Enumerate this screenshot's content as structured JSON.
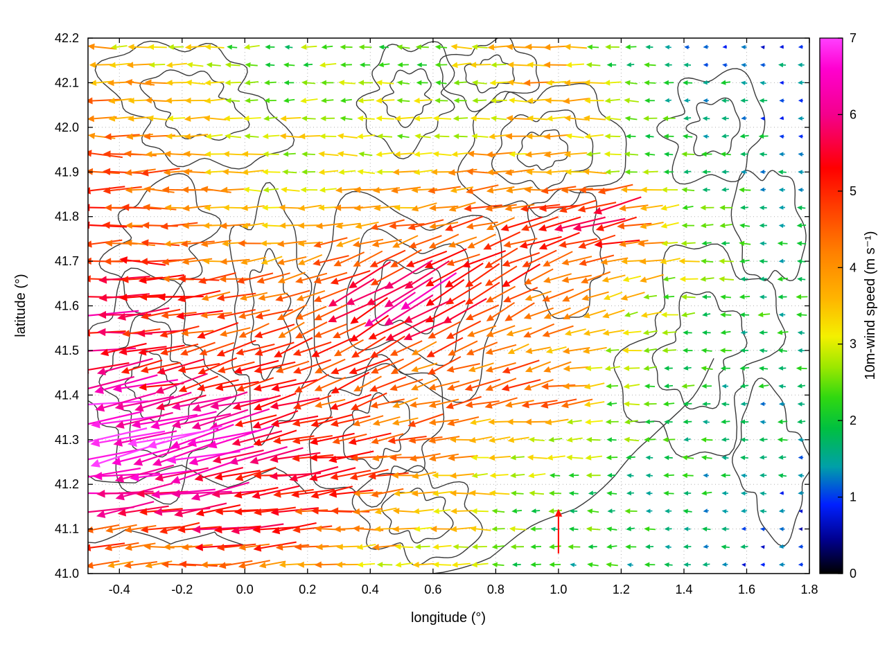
{
  "figure": {
    "background": "#ffffff"
  },
  "chart_data": {
    "type": "quiver",
    "title": "",
    "xlabel": "longitude (°)",
    "ylabel": "latitude (°)",
    "xlim": [
      -0.5,
      1.8
    ],
    "ylim": [
      41.0,
      42.2
    ],
    "grid": true,
    "x_ticks": {
      "values": [
        -0.4,
        -0.2,
        0.0,
        0.2,
        0.4,
        0.6,
        0.8,
        1.0,
        1.2,
        1.4,
        1.6,
        1.8
      ],
      "labels": [
        "-0.4",
        "-0.2",
        "0.0",
        "0.2",
        "0.4",
        "0.6",
        "0.8",
        "1.0",
        "1.2",
        "1.4",
        "1.6",
        "1.8"
      ]
    },
    "y_ticks": {
      "values": [
        41.0,
        41.1,
        41.2,
        41.3,
        41.4,
        41.5,
        41.6,
        41.7,
        41.8,
        41.9,
        42.0,
        42.1,
        42.2
      ],
      "labels": [
        "41.0",
        "41.1",
        "41.2",
        "41.3",
        "41.4",
        "41.5",
        "41.6",
        "41.7",
        "41.8",
        "41.9",
        "42.0",
        "42.1",
        "42.2"
      ]
    },
    "colorbar": {
      "label": "10m-wind speed (m s⁻¹)",
      "min": 0,
      "max": 7,
      "ticks": {
        "values": [
          0,
          1,
          2,
          3,
          4,
          5,
          6,
          7
        ],
        "labels": [
          "0",
          "1",
          "2",
          "3",
          "4",
          "5",
          "6",
          "7"
        ]
      },
      "stops": [
        [
          0.0,
          "#000000"
        ],
        [
          0.45,
          "#00008f"
        ],
        [
          0.9,
          "#0020ff"
        ],
        [
          1.4,
          "#00a0a8"
        ],
        [
          1.9,
          "#00c040"
        ],
        [
          2.3,
          "#30d810"
        ],
        [
          2.7,
          "#9ce800"
        ],
        [
          3.1,
          "#f4f000"
        ],
        [
          3.6,
          "#ffb400"
        ],
        [
          4.2,
          "#ff8000"
        ],
        [
          4.8,
          "#ff3c00"
        ],
        [
          5.3,
          "#ff0000"
        ],
        [
          6.0,
          "#f4008c"
        ],
        [
          6.6,
          "#ff00d0"
        ],
        [
          7.0,
          "#ff40ff"
        ]
      ]
    },
    "arrow_grid": {
      "lats": [
        42.2,
        42.1,
        42.0,
        41.9,
        41.8,
        41.7,
        41.6,
        41.5,
        41.4,
        41.3,
        41.2,
        41.1,
        41.0
      ],
      "lons": [
        -0.5,
        -0.29,
        -0.08,
        0.13,
        0.34,
        0.55,
        0.75,
        0.96,
        1.17,
        1.38,
        1.59,
        1.8
      ],
      "speed": [
        [
          3.5,
          3.2,
          2.6,
          2.2,
          2.6,
          2.4,
          3.4,
          3.8,
          2.2,
          1.5,
          1.2,
          0.9
        ],
        [
          4.0,
          3.6,
          3.0,
          2.5,
          2.8,
          2.6,
          3.0,
          4.0,
          2.6,
          1.8,
          1.5,
          1.0
        ],
        [
          4.2,
          3.8,
          3.2,
          3.0,
          3.0,
          2.8,
          3.2,
          3.6,
          2.8,
          2.0,
          1.6,
          1.2
        ],
        [
          5.0,
          4.4,
          3.5,
          3.0,
          3.2,
          3.6,
          4.0,
          3.6,
          3.0,
          2.2,
          1.8,
          1.5
        ],
        [
          5.0,
          4.2,
          3.8,
          3.6,
          3.8,
          4.0,
          4.4,
          5.4,
          6.0,
          2.6,
          2.0,
          1.8
        ],
        [
          5.2,
          4.8,
          4.2,
          4.0,
          4.5,
          4.8,
          5.0,
          4.6,
          4.0,
          3.0,
          2.0,
          1.8
        ],
        [
          6.0,
          5.4,
          4.5,
          4.2,
          5.6,
          6.4,
          5.0,
          4.2,
          3.4,
          2.5,
          2.0,
          1.8
        ],
        [
          5.6,
          5.0,
          4.8,
          4.6,
          5.0,
          4.6,
          4.2,
          4.0,
          3.0,
          2.2,
          2.0,
          1.8
        ],
        [
          6.5,
          6.0,
          5.5,
          5.0,
          4.6,
          4.2,
          4.6,
          5.0,
          2.5,
          2.0,
          1.8,
          1.5
        ],
        [
          7.0,
          6.8,
          6.2,
          5.5,
          4.8,
          4.2,
          3.5,
          3.0,
          2.5,
          2.0,
          1.8,
          1.5
        ],
        [
          6.8,
          6.5,
          5.8,
          5.2,
          4.8,
          4.0,
          3.2,
          2.5,
          2.0,
          1.8,
          1.5,
          1.2
        ],
        [
          5.0,
          4.6,
          5.4,
          5.0,
          4.0,
          3.5,
          3.0,
          2.0,
          2.2,
          1.8,
          1.2,
          1.0
        ],
        [
          4.0,
          3.6,
          4.4,
          4.0,
          3.5,
          3.0,
          2.5,
          2.0,
          1.8,
          1.5,
          1.2,
          0.9
        ]
      ],
      "direction": [
        [
          180,
          180,
          180,
          180,
          180,
          180,
          180,
          180,
          180,
          180,
          180,
          180
        ],
        [
          180,
          180,
          180,
          180,
          180,
          180,
          180,
          180,
          180,
          180,
          180,
          180
        ],
        [
          180,
          180,
          180,
          180,
          180,
          180,
          180,
          180,
          180,
          180,
          180,
          180
        ],
        [
          180,
          180,
          180,
          180,
          180,
          180,
          180,
          180,
          180,
          180,
          180,
          180
        ],
        [
          180,
          180,
          180,
          180,
          185,
          190,
          195,
          195,
          195,
          185,
          180,
          180
        ],
        [
          180,
          180,
          185,
          195,
          200,
          205,
          205,
          200,
          190,
          185,
          180,
          180
        ],
        [
          182,
          185,
          190,
          200,
          210,
          212,
          210,
          205,
          195,
          185,
          180,
          180
        ],
        [
          185,
          188,
          195,
          205,
          208,
          205,
          200,
          195,
          188,
          182,
          180,
          180
        ],
        [
          190,
          192,
          195,
          198,
          200,
          198,
          195,
          190,
          185,
          180,
          180,
          180
        ],
        [
          192,
          193,
          193,
          192,
          190,
          188,
          185,
          182,
          180,
          180,
          180,
          180
        ],
        [
          188,
          190,
          190,
          188,
          186,
          184,
          182,
          180,
          180,
          180,
          180,
          180
        ],
        [
          184,
          185,
          186,
          185,
          184,
          182,
          180,
          180,
          180,
          180,
          180,
          180
        ],
        [
          182,
          183,
          184,
          183,
          182,
          180,
          180,
          180,
          178,
          178,
          180,
          180
        ]
      ],
      "nx": 38,
      "ny": 30
    },
    "special_arrows": [
      {
        "lon": 1.0,
        "lat": 41.11,
        "speed": 5.2,
        "direction": 90
      }
    ],
    "contours": {
      "color": "#3a3a3a",
      "width": 1.4,
      "blobs": [
        {
          "lon": -0.16,
          "lat": 42.05,
          "rlon": 0.26,
          "rlat": 0.13,
          "rings": [
            1,
            0.55
          ],
          "seed": 1
        },
        {
          "lon": -0.27,
          "lat": 41.74,
          "rlon": 0.17,
          "rlat": 0.12,
          "rings": [
            1
          ],
          "seed": 2
        },
        {
          "lon": -0.3,
          "lat": 41.42,
          "rlon": 0.24,
          "rlat": 0.2,
          "rings": [
            1,
            0.6,
            0.3
          ],
          "seed": 3
        },
        {
          "lon": 0.08,
          "lat": 41.58,
          "rlon": 0.14,
          "rlat": 0.22,
          "rings": [
            1,
            0.5
          ],
          "seed": 4
        },
        {
          "lon": 0.52,
          "lat": 41.62,
          "rlon": 0.27,
          "rlat": 0.24,
          "rings": [
            1,
            0.65,
            0.35
          ],
          "seed": 5
        },
        {
          "lon": 0.42,
          "lat": 41.32,
          "rlon": 0.2,
          "rlat": 0.14,
          "rings": [
            1,
            0.5
          ],
          "seed": 6
        },
        {
          "lon": 0.55,
          "lat": 41.13,
          "rlon": 0.17,
          "rlat": 0.11,
          "rings": [
            1,
            0.55
          ],
          "seed": 7
        },
        {
          "lon": 0.52,
          "lat": 42.07,
          "rlon": 0.16,
          "rlat": 0.1,
          "rings": [
            1,
            0.5
          ],
          "seed": 8
        },
        {
          "lon": 0.78,
          "lat": 42.12,
          "rlon": 0.13,
          "rlat": 0.08,
          "rings": [
            1,
            0.5
          ],
          "seed": 9
        },
        {
          "lon": 0.95,
          "lat": 41.95,
          "rlon": 0.22,
          "rlat": 0.16,
          "rings": [
            1,
            0.6,
            0.3
          ],
          "seed": 10
        },
        {
          "lon": 1.02,
          "lat": 41.72,
          "rlon": 0.14,
          "rlat": 0.12,
          "rings": [
            1
          ],
          "seed": 11
        },
        {
          "lon": 1.45,
          "lat": 41.5,
          "rlon": 0.24,
          "rlat": 0.2,
          "rings": [
            1,
            0.55
          ],
          "seed": 12
        },
        {
          "lon": 1.5,
          "lat": 42.0,
          "rlon": 0.17,
          "rlat": 0.11,
          "rings": [
            1,
            0.5
          ],
          "seed": 13
        },
        {
          "lon": 1.68,
          "lat": 41.25,
          "rlon": 0.12,
          "rlat": 0.14,
          "rings": [
            1
          ],
          "seed": 14
        },
        {
          "lon": 1.67,
          "lat": 41.78,
          "rlon": 0.1,
          "rlat": 0.14,
          "rings": [
            1
          ],
          "seed": 15
        }
      ],
      "polylines": [
        [
          [
            0.6,
            41.0
          ],
          [
            0.78,
            41.04
          ],
          [
            0.92,
            41.1
          ],
          [
            1.05,
            41.15
          ],
          [
            1.18,
            41.22
          ],
          [
            1.3,
            41.3
          ],
          [
            1.42,
            41.4
          ],
          [
            1.5,
            41.48
          ]
        ],
        [
          [
            -0.5,
            41.22
          ],
          [
            -0.35,
            41.2
          ],
          [
            -0.2,
            41.24
          ],
          [
            -0.05,
            41.2
          ],
          [
            0.1,
            41.23
          ],
          [
            0.2,
            41.18
          ]
        ],
        [
          [
            -0.5,
            41.07
          ],
          [
            -0.38,
            41.1
          ],
          [
            -0.24,
            41.06
          ],
          [
            -0.1,
            41.1
          ],
          [
            0.0,
            41.06
          ]
        ]
      ]
    }
  }
}
